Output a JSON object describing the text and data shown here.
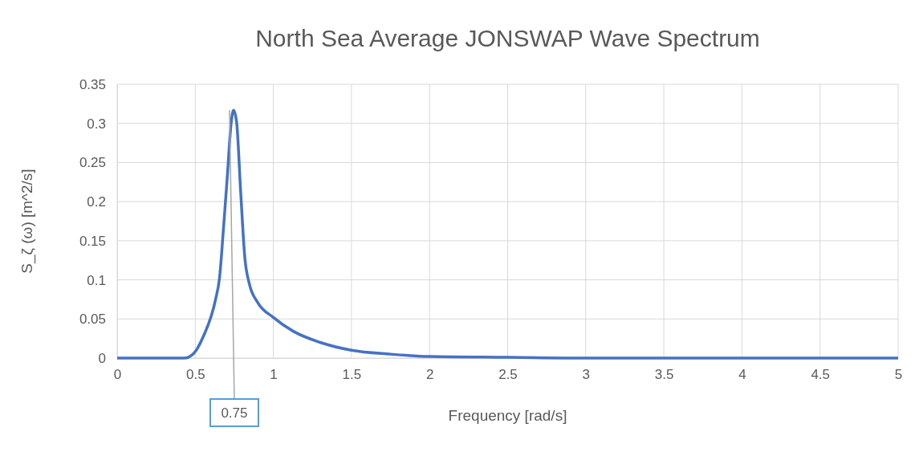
{
  "chart_data": {
    "type": "line",
    "title": "North Sea Average JONSWAP Wave Spectrum",
    "xlabel": "Frequency [rad/s]",
    "ylabel": "S_ζ (ω) [m^2/s]",
    "series": [
      {
        "color": "#4472c4",
        "x": [
          0,
          0.2,
          0.4,
          0.43,
          0.49,
          0.55,
          0.63,
          0.655,
          0.68,
          0.705,
          0.73,
          0.745,
          0.765,
          0.79,
          0.817,
          0.846,
          0.9,
          1.0,
          1.13,
          1.3,
          1.5,
          1.75,
          2,
          2.5,
          3,
          3.5,
          4,
          4.5,
          5
        ],
        "values": [
          0,
          0,
          0,
          0,
          0.006,
          0.027,
          0.075,
          0.102,
          0.164,
          0.232,
          0.301,
          0.317,
          0.301,
          0.215,
          0.129,
          0.095,
          0.071,
          0.052,
          0.034,
          0.02,
          0.01,
          0.005,
          0.002,
          0.001,
          0,
          0,
          0,
          0,
          0
        ]
      }
    ],
    "xlim": [
      0,
      5
    ],
    "xticks": [
      0,
      0.5,
      1,
      1.5,
      2,
      2.5,
      3,
      3.5,
      4,
      4.5,
      5
    ],
    "ylim": [
      0,
      0.35
    ],
    "yticks": [
      0,
      0.05,
      0.1,
      0.15,
      0.2,
      0.25,
      0.3,
      0.35
    ],
    "grid": true,
    "marker": "none",
    "line_style": "solid",
    "annotations": [
      {
        "text": "0.75",
        "x": 0.75,
        "y": 0.317
      }
    ]
  }
}
